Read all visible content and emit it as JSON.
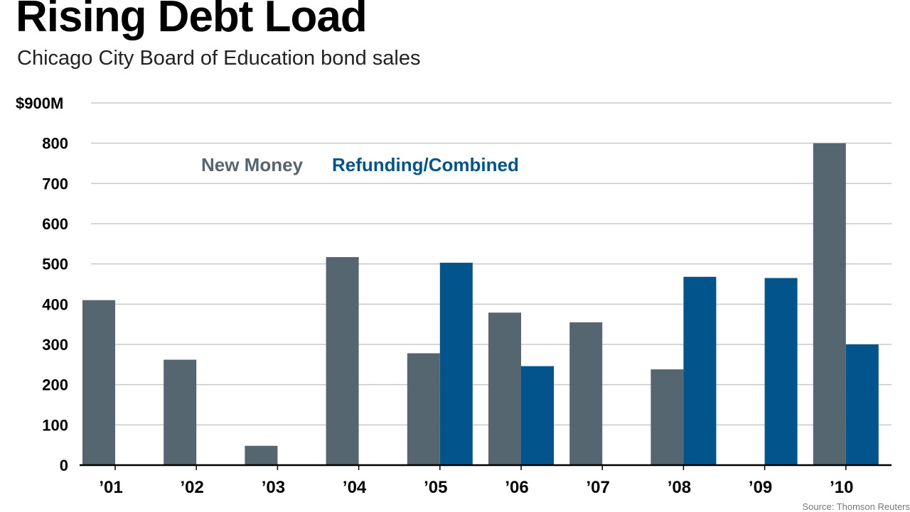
{
  "title": "Rising Debt Load",
  "subtitle": "Chicago City Board of Education bond sales",
  "source": "Source: Thomson Reuters",
  "colors": {
    "new_money": "#566671",
    "refunding": "#02558c",
    "grid": "#c8c8c8",
    "axis": "#000000"
  },
  "chart_data": {
    "type": "bar",
    "title": "Rising Debt Load",
    "subtitle": "Chicago City Board of Education bond sales",
    "xlabel": "",
    "ylabel": "",
    "ylim": [
      0,
      900
    ],
    "yticks": [
      0,
      100,
      200,
      300,
      400,
      500,
      600,
      700,
      800,
      900
    ],
    "ytick_labels": [
      "0",
      "100",
      "200",
      "300",
      "400",
      "500",
      "600",
      "700",
      "800",
      "$900M"
    ],
    "categories": [
      "’01",
      "’02",
      "’03",
      "’04",
      "’05",
      "’06",
      "’07",
      "’08",
      "’09",
      "’10"
    ],
    "series": [
      {
        "name": "New Money",
        "values": [
          410,
          262,
          48,
          517,
          278,
          379,
          355,
          238,
          0,
          800
        ]
      },
      {
        "name": "Refunding/Combined",
        "values": [
          0,
          0,
          0,
          0,
          503,
          246,
          0,
          468,
          465,
          300
        ]
      }
    ],
    "legend": "top-left",
    "grid": true
  }
}
